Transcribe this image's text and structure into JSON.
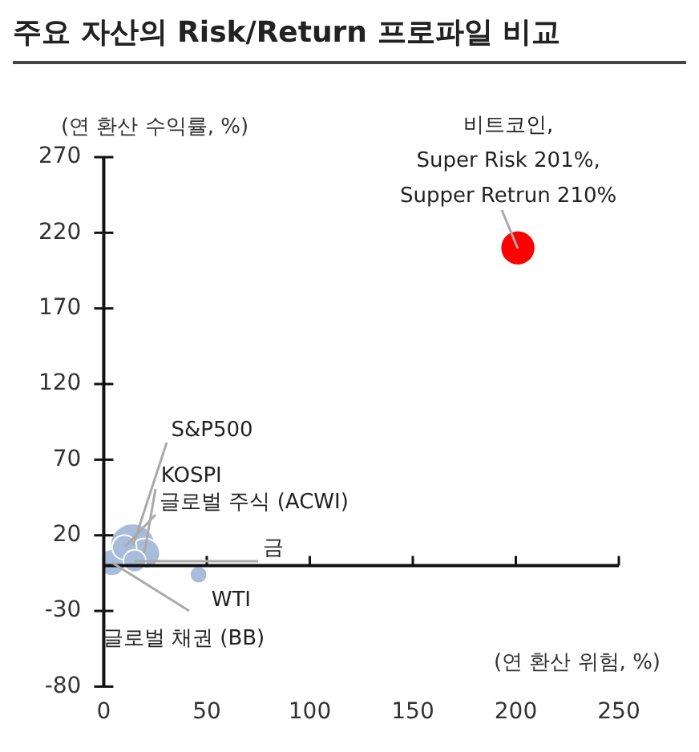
{
  "chart_data": {
    "type": "bubble",
    "title": "주요 자산의 Risk/Return 프로파일 비교",
    "xlabel": "(연 환산 위험, %)",
    "ylabel": "(연 환산 수익률, %)",
    "xlim": [
      0,
      250
    ],
    "xticks": [
      0,
      50,
      100,
      150,
      200,
      250
    ],
    "ylim": [
      -80,
      270
    ],
    "yticks": [
      -80,
      -30,
      20,
      70,
      120,
      170,
      220,
      270
    ],
    "grid": false,
    "legend": false,
    "series": [
      {
        "name": "비트코인,\nSuper Risk 201%,\nSupper Retrun 210%",
        "color": "#ff0000",
        "x": [
          201
        ],
        "values": [
          210
        ],
        "sizes": [
          0.6
        ]
      },
      {
        "name": "S&P500",
        "color": "#a9bcdb",
        "x": [
          14
        ],
        "values": [
          13
        ],
        "sizes": [
          1
        ]
      },
      {
        "name": "KOSPI",
        "color": "#a9bcdb",
        "x": [
          20
        ],
        "values": [
          8
        ],
        "sizes": [
          0.45
        ]
      },
      {
        "name": "글로벌 주식 (ACWI)",
        "color": "#a9bcdb",
        "x": [
          10
        ],
        "values": [
          12
        ],
        "sizes": [
          0.3
        ]
      },
      {
        "name": "금",
        "color": "#a9bcdb",
        "x": [
          15
        ],
        "values": [
          3
        ],
        "sizes": [
          0.25
        ]
      },
      {
        "name": "WTI",
        "color": "#a9bcdb",
        "x": [
          46
        ],
        "values": [
          -6
        ],
        "sizes": [
          0.15
        ]
      },
      {
        "name": "글로벌 채권 (BB)",
        "color": "#a9bcdb",
        "x": [
          4
        ],
        "values": [
          2
        ],
        "sizes": [
          0.35
        ]
      }
    ]
  }
}
